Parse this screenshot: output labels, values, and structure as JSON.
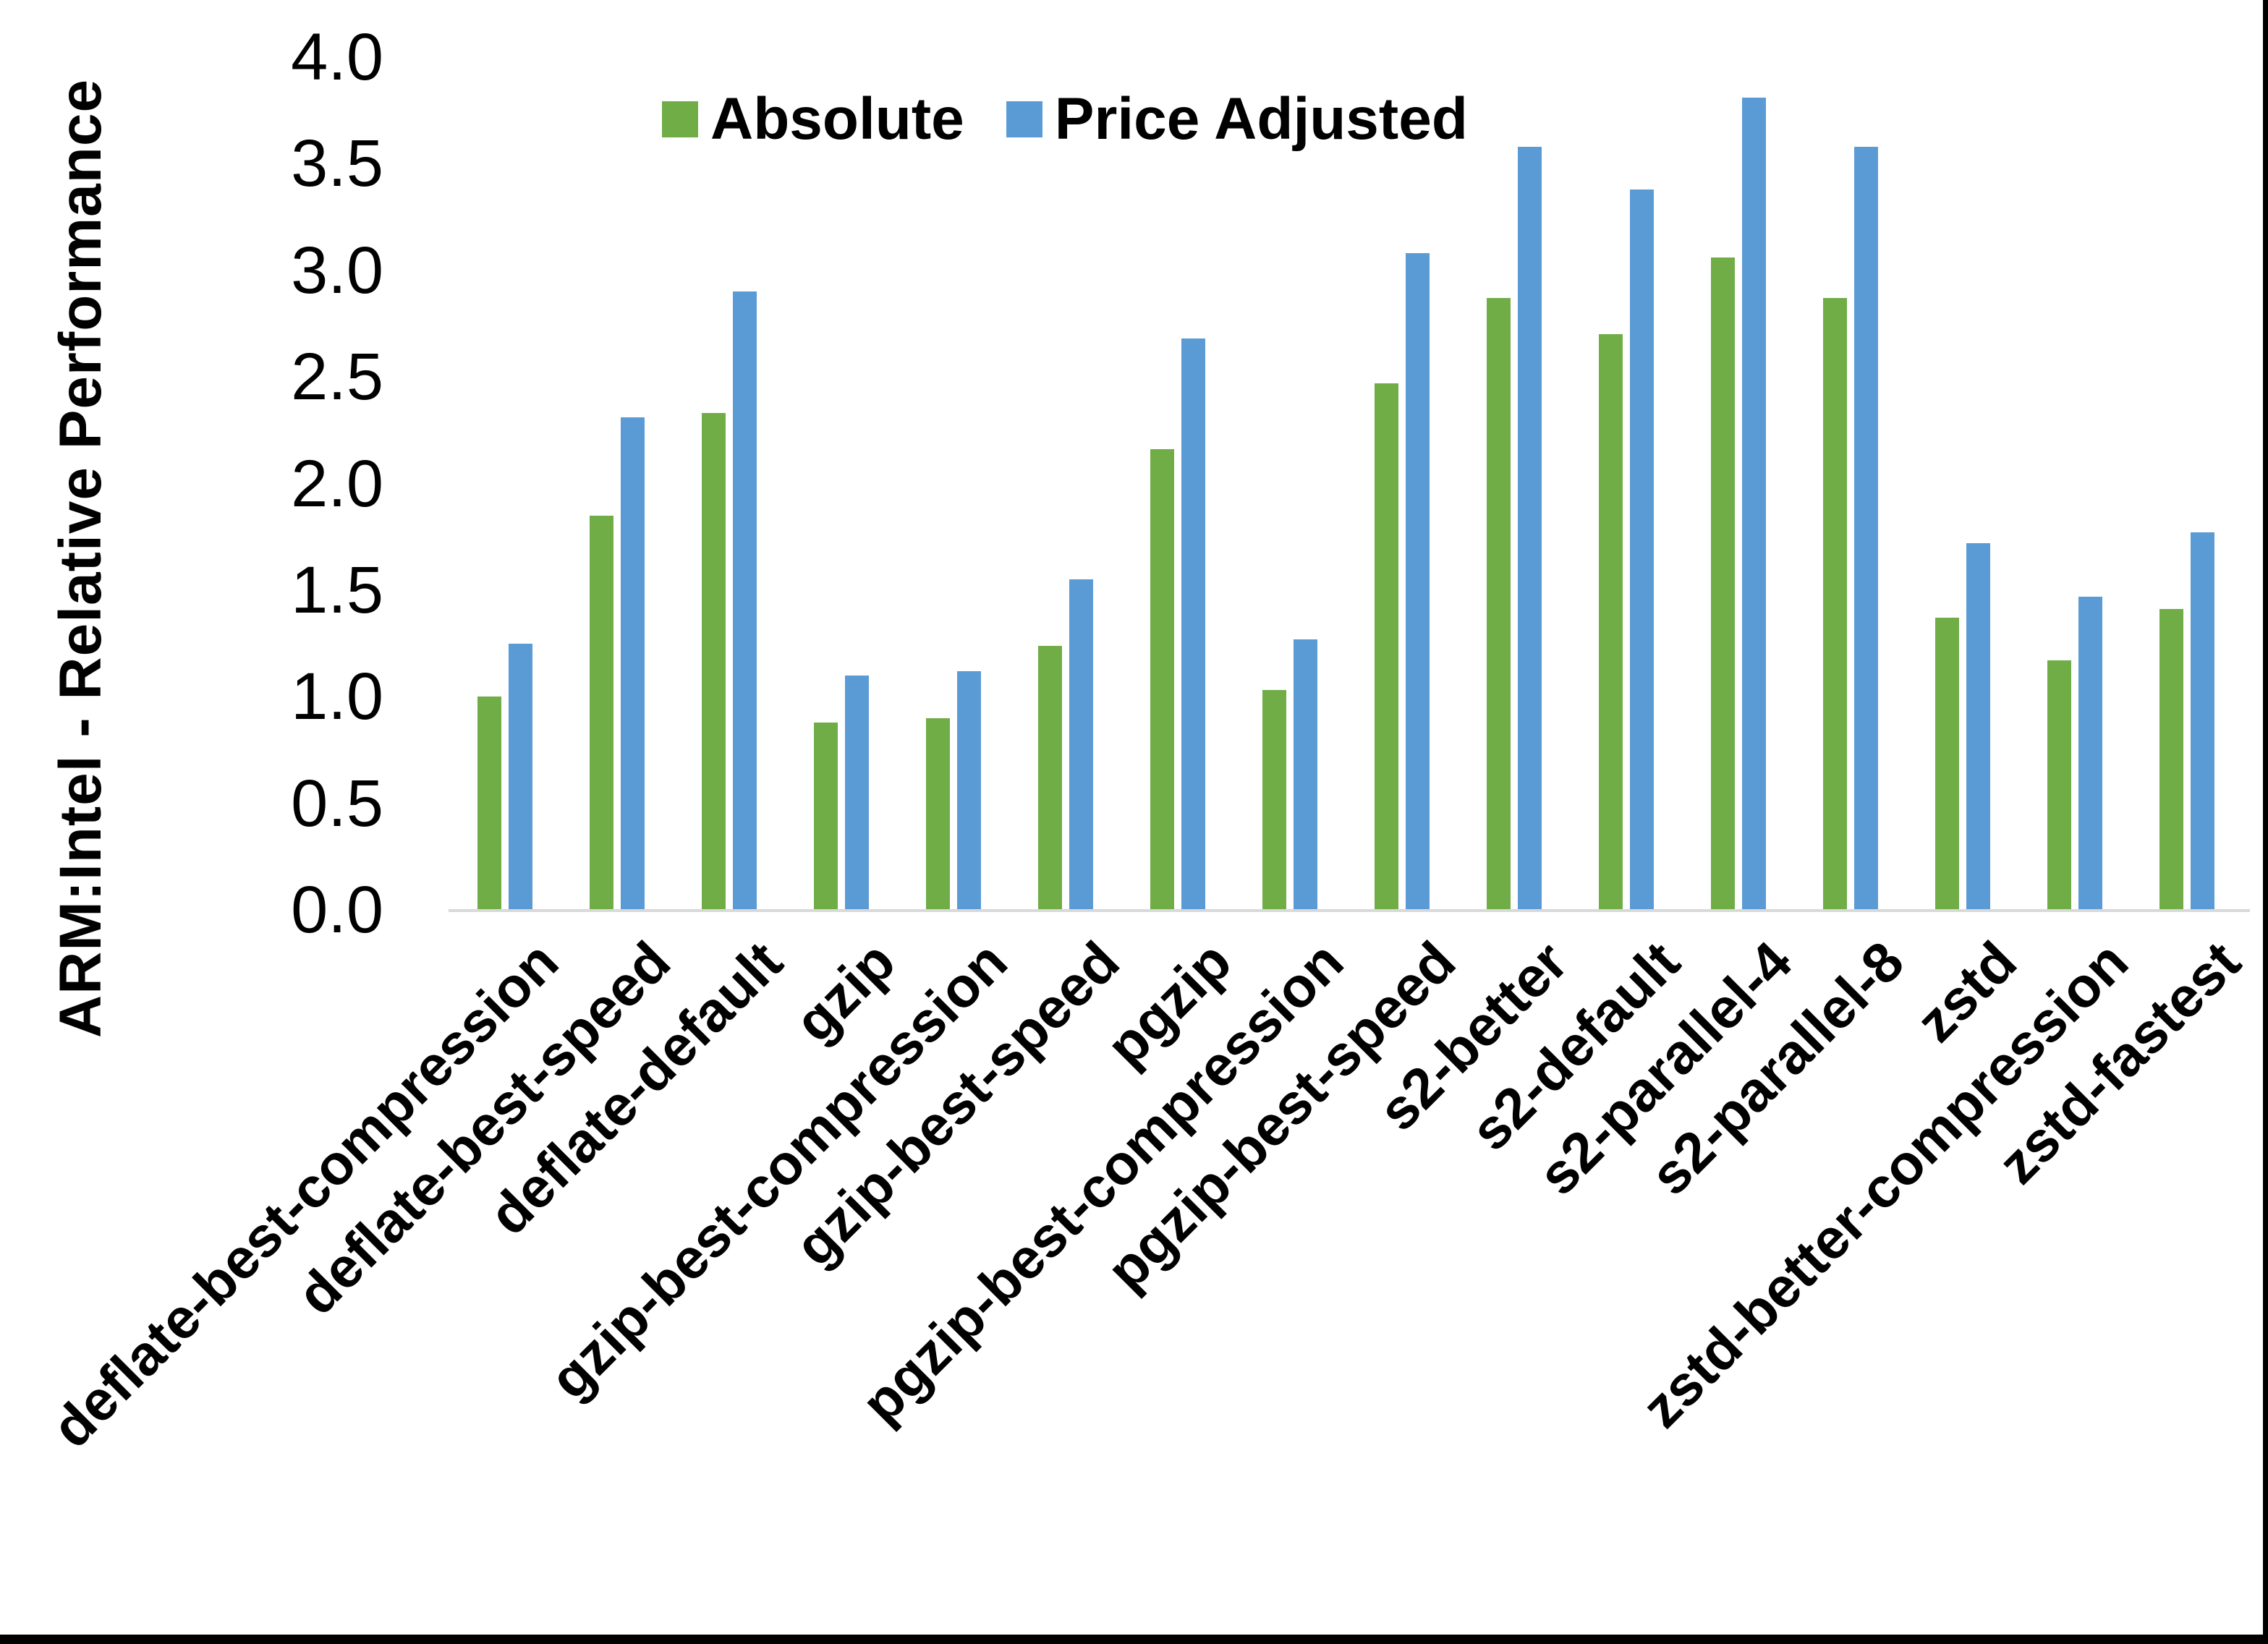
{
  "page": {
    "background": "#FFFFFF",
    "frame_color": "#000000"
  },
  "chart_data": {
    "type": "bar",
    "title": "",
    "xlabel": "",
    "ylabel": "ARM:Intel - Relative Performance",
    "ylim": [
      0.0,
      4.0
    ],
    "ytick_step": 0.5,
    "ytick_labels": [
      "0.0",
      "0.5",
      "1.0",
      "1.5",
      "2.0",
      "2.5",
      "3.0",
      "3.5",
      "4.0"
    ],
    "grid": false,
    "legend_position": "top",
    "axis_line_color": "#D9D9D9",
    "text_color": "#000000",
    "categories": [
      "deflate-best-compression",
      "deflate-best-speed",
      "deflate-default",
      "gzip",
      "gzip-best-compression",
      "gzip-best-speed",
      "pgzip",
      "pgzip-best-compression",
      "pgzip-best-speed",
      "s2-better",
      "s2-default",
      "s2-parallel-4",
      "s2-parallel-8",
      "zstd",
      "zstd-better-compression",
      "zstd-fastest"
    ],
    "series": [
      {
        "name": "Absolute",
        "color": "#70AD47",
        "values": [
          1.0,
          1.85,
          2.33,
          0.88,
          0.9,
          1.24,
          2.16,
          1.03,
          2.47,
          2.87,
          2.7,
          3.06,
          2.87,
          1.37,
          1.17,
          1.41
        ]
      },
      {
        "name": "Price Adjusted",
        "color": "#5B9BD5",
        "values": [
          1.25,
          2.31,
          2.9,
          1.1,
          1.12,
          1.55,
          2.68,
          1.27,
          3.08,
          3.58,
          3.38,
          3.81,
          3.58,
          1.72,
          1.47,
          1.77
        ]
      }
    ]
  }
}
